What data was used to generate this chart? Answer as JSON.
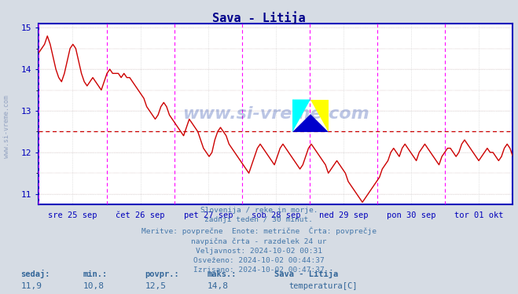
{
  "title": "Sava - Litija",
  "title_color": "#00008B",
  "bg_color": "#D6DCE4",
  "plot_bg_color": "#FFFFFF",
  "line_color": "#CC0000",
  "avg_line_color": "#CC0000",
  "avg_value": 12.5,
  "y_min": 10.75,
  "y_max": 15.1,
  "y_ticks": [
    11,
    12,
    13,
    14,
    15
  ],
  "x_tick_labels": [
    "sre 25 sep",
    "čet 26 sep",
    "pet 27 sep",
    "sob 28 sep",
    "ned 29 sep",
    "pon 30 sep",
    "tor 01 okt"
  ],
  "info_lines": [
    "Slovenija / reke in morje.",
    "zadnji teden / 30 minut.",
    "Meritve: povprečne  Enote: metrične  Črta: povprečje",
    "navpična črta - razdelek 24 ur",
    "Veljavnost: 2024-10-02 00:31",
    "Osveženo: 2024-10-02 00:44:37",
    "Izrisano: 2024-10-02 00:47:37"
  ],
  "bottom_labels": [
    "sedaj:",
    "min.:",
    "povpr.:",
    "maks.:"
  ],
  "bottom_values": [
    "11,9",
    "10,8",
    "12,5",
    "14,8"
  ],
  "station_name": "Sava - Litija",
  "legend_label": "temperatura[C]",
  "watermark": "www.si-vreme.com",
  "grid_color": "#CCCCCC",
  "vline_color": "#FF00FF",
  "axis_color": "#0000BB",
  "temperature_data": [
    14.4,
    14.5,
    14.6,
    14.8,
    14.6,
    14.3,
    14.0,
    13.8,
    13.7,
    13.9,
    14.2,
    14.5,
    14.6,
    14.5,
    14.2,
    13.9,
    13.7,
    13.6,
    13.7,
    13.8,
    13.7,
    13.6,
    13.5,
    13.7,
    13.9,
    14.0,
    13.9,
    13.9,
    13.9,
    13.8,
    13.9,
    13.8,
    13.8,
    13.7,
    13.6,
    13.5,
    13.4,
    13.3,
    13.1,
    13.0,
    12.9,
    12.8,
    12.9,
    13.1,
    13.2,
    13.1,
    12.9,
    12.8,
    12.7,
    12.6,
    12.5,
    12.4,
    12.6,
    12.8,
    12.7,
    12.6,
    12.5,
    12.3,
    12.1,
    12.0,
    11.9,
    12.0,
    12.3,
    12.5,
    12.6,
    12.5,
    12.4,
    12.2,
    12.1,
    12.0,
    11.9,
    11.8,
    11.7,
    11.6,
    11.5,
    11.7,
    11.9,
    12.1,
    12.2,
    12.1,
    12.0,
    11.9,
    11.8,
    11.7,
    11.9,
    12.1,
    12.2,
    12.1,
    12.0,
    11.9,
    11.8,
    11.7,
    11.6,
    11.7,
    11.9,
    12.1,
    12.2,
    12.1,
    12.0,
    11.9,
    11.8,
    11.7,
    11.5,
    11.6,
    11.7,
    11.8,
    11.7,
    11.6,
    11.5,
    11.3,
    11.2,
    11.1,
    11.0,
    10.9,
    10.8,
    10.9,
    11.0,
    11.1,
    11.2,
    11.3,
    11.4,
    11.6,
    11.7,
    11.8,
    12.0,
    12.1,
    12.0,
    11.9,
    12.1,
    12.2,
    12.1,
    12.0,
    11.9,
    11.8,
    12.0,
    12.1,
    12.2,
    12.1,
    12.0,
    11.9,
    11.8,
    11.7,
    11.9,
    12.0,
    12.1,
    12.1,
    12.0,
    11.9,
    12.0,
    12.2,
    12.3,
    12.2,
    12.1,
    12.0,
    11.9,
    11.8,
    11.9,
    12.0,
    12.1,
    12.0,
    12.0,
    11.9,
    11.8,
    11.9,
    12.1,
    12.2,
    12.1,
    11.9
  ]
}
